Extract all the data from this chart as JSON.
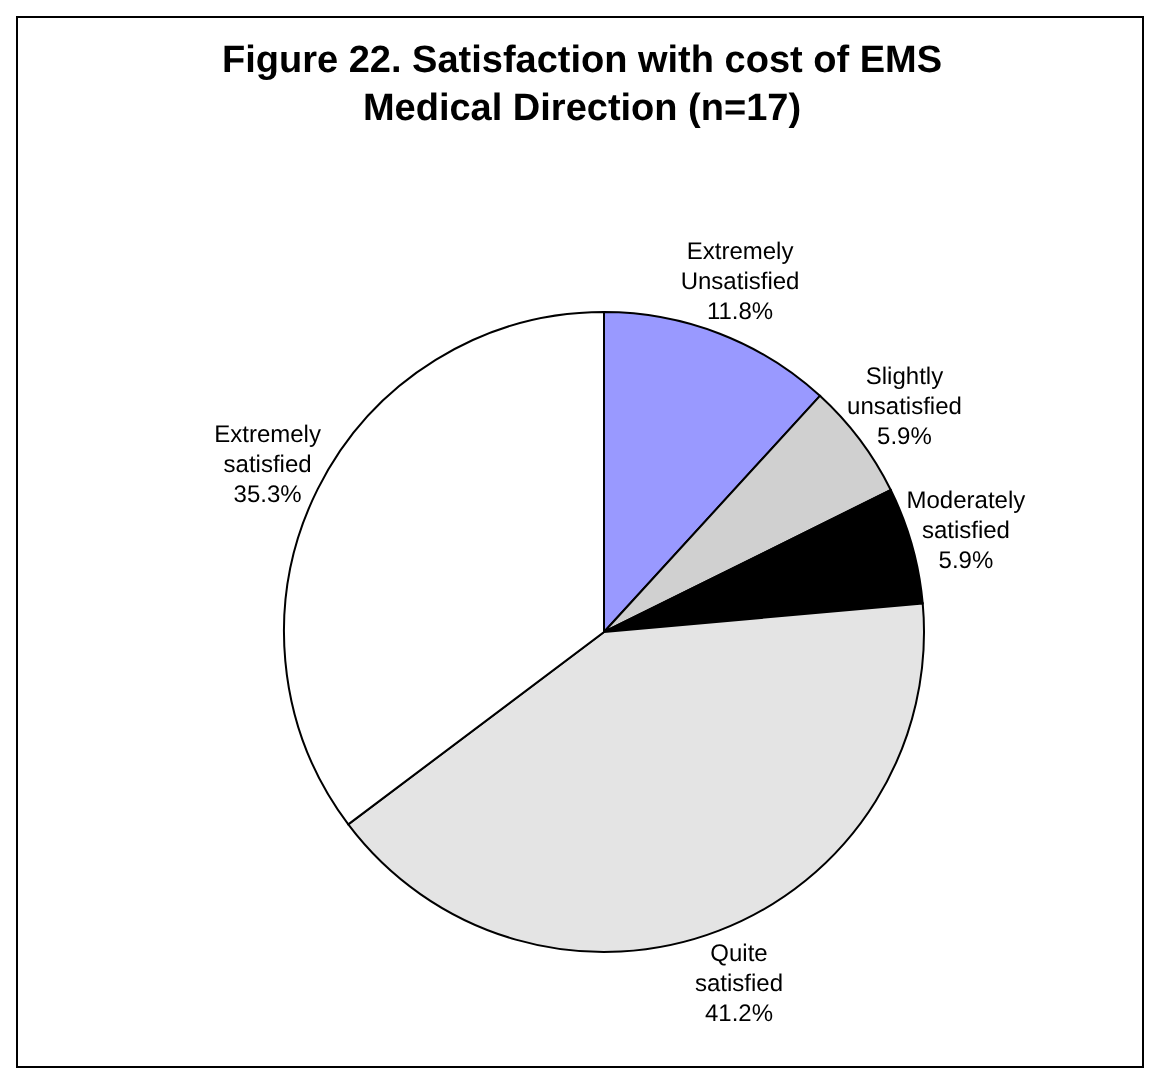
{
  "chart_data": {
    "type": "pie",
    "title": "Figure 22.  Satisfaction with cost of EMS Medical Direction (n=17)",
    "categories": [
      "Extremely Unsatisfied",
      "Slightly unsatisfied",
      "Moderately satisfied",
      "Quite satisfied",
      "Extremely satisfied"
    ],
    "values": [
      11.8,
      5.9,
      5.9,
      41.2,
      35.3
    ],
    "colors": [
      "#9999ff",
      "#d0d0d0",
      "#000000",
      "#e4e4e4",
      "#ffffff"
    ],
    "value_labels": [
      "11.8%",
      "5.9%",
      "5.9%",
      "41.2%",
      "35.3%"
    ]
  }
}
